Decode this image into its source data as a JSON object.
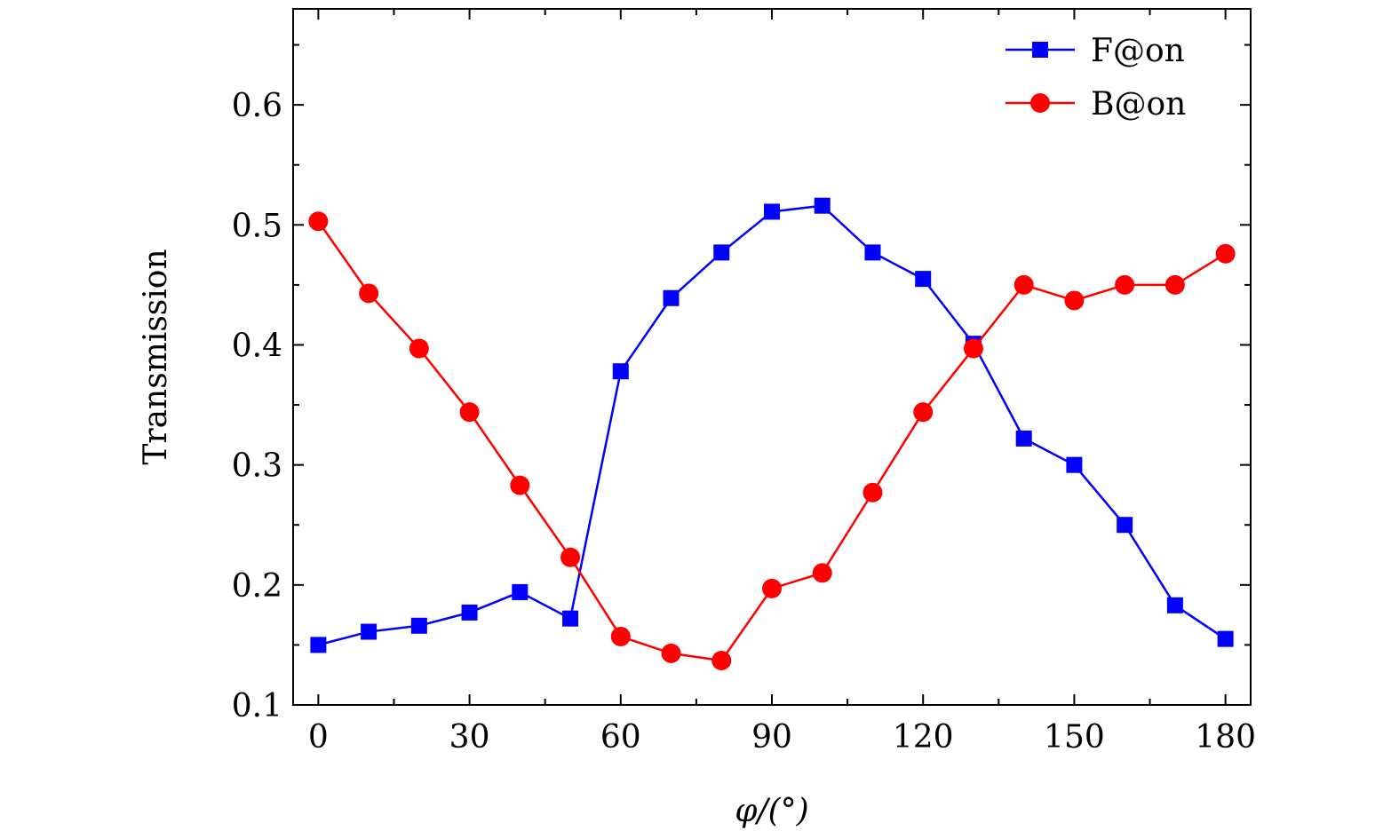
{
  "chart_data": {
    "type": "line",
    "xlabel": "φ/(°)",
    "ylabel": "Transmission",
    "xlim": [
      -5,
      185
    ],
    "ylim": [
      0.1,
      0.68
    ],
    "x_ticks": [
      0,
      30,
      60,
      90,
      120,
      150,
      180
    ],
    "x_tick_labels": [
      "0",
      "30",
      "60",
      "90",
      "120",
      "150",
      "180"
    ],
    "y_ticks": [
      0.1,
      0.2,
      0.3,
      0.4,
      0.5,
      0.6
    ],
    "y_tick_labels": [
      "0.1",
      "0.2",
      "0.3",
      "0.4",
      "0.5",
      "0.6"
    ],
    "grid": false,
    "legend_position": "top-right",
    "x": [
      0,
      10,
      20,
      30,
      40,
      50,
      60,
      70,
      80,
      90,
      100,
      110,
      120,
      130,
      140,
      150,
      160,
      170,
      180
    ],
    "series": [
      {
        "name": "F@on",
        "color": "#0000ff",
        "marker": "square",
        "values": [
          0.15,
          0.161,
          0.166,
          0.177,
          0.194,
          0.172,
          0.378,
          0.439,
          0.477,
          0.511,
          0.516,
          0.477,
          0.455,
          0.401,
          0.322,
          0.3,
          0.25,
          0.183,
          0.155
        ]
      },
      {
        "name": "B@on",
        "color": "#ff0000",
        "marker": "circle",
        "values": [
          0.503,
          0.443,
          0.397,
          0.344,
          0.283,
          0.223,
          0.157,
          0.143,
          0.137,
          0.197,
          0.21,
          0.277,
          0.344,
          0.397,
          0.45,
          0.437,
          0.45,
          0.45,
          0.476
        ]
      }
    ]
  }
}
